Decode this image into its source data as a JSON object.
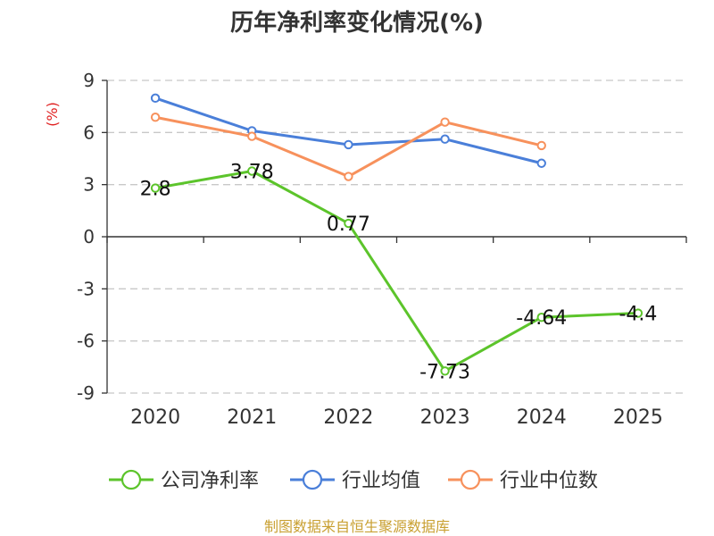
{
  "chart_data": {
    "type": "line",
    "title": "历年净利率变化情况(%)",
    "ylabel": "(%)",
    "xlabel": "",
    "categories": [
      "2020",
      "2021",
      "2022",
      "2023",
      "2024",
      "2025"
    ],
    "ylim": [
      -9,
      9
    ],
    "yticks": [
      9,
      6,
      3,
      0,
      -3,
      -6,
      -9
    ],
    "grid": true,
    "legend_position": "bottom",
    "series": [
      {
        "name": "公司净利率",
        "color": "#5cc42b",
        "values": [
          2.8,
          3.78,
          0.77,
          -7.73,
          -4.64,
          -4.4
        ],
        "labels": [
          "2.8",
          "3.78",
          "0.77",
          "-7.73",
          "-4.64",
          "-4.4"
        ]
      },
      {
        "name": "行业均值",
        "color": "#4a7fd9",
        "values": [
          7.98,
          6.1,
          5.3,
          5.62,
          4.23,
          null
        ]
      },
      {
        "name": "行业中位数",
        "color": "#f7915c",
        "values": [
          6.88,
          5.78,
          3.47,
          6.6,
          5.25,
          null
        ]
      }
    ]
  },
  "source": "制图数据来自恒生聚源数据库"
}
